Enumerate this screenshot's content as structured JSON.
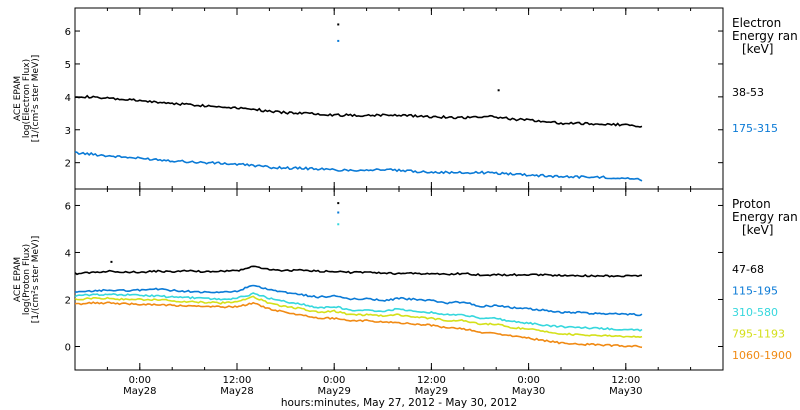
{
  "figure": {
    "xaxis_title": "hours:minutes, May 27, 2012 - May 30, 2012",
    "x_ticks": [
      {
        "hour": 8,
        "time": "0:00",
        "date": "May28"
      },
      {
        "hour": 20,
        "time": "12:00",
        "date": "May28"
      },
      {
        "hour": 32,
        "time": "0:00",
        "date": "May29"
      },
      {
        "hour": 44,
        "time": "12:00",
        "date": "May29"
      },
      {
        "hour": 56,
        "time": "0:00",
        "date": "May30"
      },
      {
        "hour": 68,
        "time": "12:00",
        "date": "May30"
      }
    ]
  },
  "chart_data": [
    {
      "type": "line",
      "ylabel_lines": [
        "ACE EPAM",
        "log(Electron Flux)",
        "[1/(cm²s ster MeV)]"
      ],
      "legend_title": [
        "Electron",
        "Energy ran",
        "[keV]"
      ],
      "ylim": [
        1.2,
        6.7
      ],
      "yticks": [
        "2",
        "3",
        "4",
        "5",
        "6"
      ],
      "x_unit": "hours after May 27, 2012 16:00",
      "xlim": [
        0,
        80
      ],
      "series": [
        {
          "name": "38-53",
          "color": "#000000",
          "x": [
            0,
            2,
            4,
            6,
            8,
            10,
            12,
            14,
            16,
            18,
            20,
            22,
            24,
            26,
            28,
            30,
            32,
            34,
            36,
            38,
            40,
            42,
            44,
            46,
            48,
            50,
            52,
            54,
            56,
            58,
            60,
            62,
            64,
            66,
            68,
            70
          ],
          "y": [
            4.02,
            3.99,
            3.95,
            3.92,
            3.88,
            3.84,
            3.8,
            3.77,
            3.73,
            3.7,
            3.67,
            3.64,
            3.55,
            3.52,
            3.51,
            3.49,
            3.45,
            3.44,
            3.44,
            3.45,
            3.45,
            3.42,
            3.4,
            3.38,
            3.37,
            3.4,
            3.39,
            3.32,
            3.3,
            3.25,
            3.2,
            3.19,
            3.18,
            3.17,
            3.15,
            3.1
          ]
        },
        {
          "name": "175-315",
          "color": "#0a7ad6",
          "x": [
            0,
            2,
            4,
            6,
            8,
            10,
            12,
            14,
            16,
            18,
            20,
            22,
            24,
            26,
            28,
            30,
            32,
            34,
            36,
            38,
            40,
            42,
            44,
            46,
            48,
            50,
            52,
            54,
            56,
            58,
            60,
            62,
            64,
            66,
            68,
            70
          ],
          "y": [
            2.3,
            2.26,
            2.21,
            2.17,
            2.13,
            2.1,
            2.06,
            2.03,
            2.0,
            1.98,
            1.95,
            1.92,
            1.86,
            1.84,
            1.83,
            1.81,
            1.78,
            1.77,
            1.78,
            1.79,
            1.76,
            1.73,
            1.72,
            1.7,
            1.69,
            1.7,
            1.68,
            1.66,
            1.63,
            1.6,
            1.58,
            1.57,
            1.56,
            1.55,
            1.53,
            1.47
          ]
        }
      ],
      "spikes": [
        {
          "x": 32.5,
          "y": 6.2,
          "color": "#000000"
        },
        {
          "x": 32.5,
          "y": 5.7,
          "color": "#0a7ad6"
        },
        {
          "x": 52.3,
          "y": 4.2,
          "color": "#000000"
        }
      ]
    },
    {
      "type": "line",
      "ylabel_lines": [
        "ACE EPAM",
        "log(Proton Flux)",
        "[1/(cm²s ster MeV)]"
      ],
      "legend_title": [
        "Proton",
        "Energy ran",
        "[keV]"
      ],
      "ylim": [
        -1.0,
        6.7
      ],
      "yticks": [
        "0",
        "2",
        "4",
        "6"
      ],
      "x_unit": "hours after May 27, 2012 16:00",
      "xlim": [
        0,
        80
      ],
      "series": [
        {
          "name": "47-68",
          "color": "#000000",
          "x": [
            0,
            2,
            4,
            6,
            8,
            10,
            12,
            14,
            16,
            18,
            20,
            22,
            24,
            26,
            28,
            30,
            32,
            34,
            36,
            38,
            40,
            42,
            44,
            46,
            48,
            50,
            52,
            54,
            56,
            58,
            60,
            62,
            64,
            66,
            68,
            70
          ],
          "y": [
            3.1,
            3.15,
            3.2,
            3.18,
            3.15,
            3.2,
            3.18,
            3.22,
            3.18,
            3.2,
            3.22,
            3.4,
            3.28,
            3.22,
            3.25,
            3.2,
            3.2,
            3.15,
            3.15,
            3.12,
            3.1,
            3.12,
            3.08,
            3.08,
            3.1,
            3.05,
            3.05,
            3.05,
            3.05,
            3.05,
            3.02,
            3.02,
            3.0,
            3.0,
            3.0,
            3.0
          ]
        },
        {
          "name": "115-195",
          "color": "#0a7ad6",
          "x": [
            0,
            2,
            4,
            6,
            8,
            10,
            12,
            14,
            16,
            18,
            20,
            22,
            24,
            26,
            28,
            30,
            32,
            34,
            36,
            38,
            40,
            42,
            44,
            46,
            48,
            50,
            52,
            54,
            56,
            58,
            60,
            62,
            64,
            66,
            68,
            70
          ],
          "y": [
            2.3,
            2.35,
            2.4,
            2.38,
            2.4,
            2.45,
            2.38,
            2.35,
            2.3,
            2.3,
            2.35,
            2.6,
            2.4,
            2.3,
            2.2,
            2.1,
            2.15,
            2.0,
            2.05,
            1.95,
            2.05,
            2.0,
            1.95,
            1.85,
            1.9,
            1.7,
            1.75,
            1.65,
            1.6,
            1.55,
            1.45,
            1.45,
            1.4,
            1.4,
            1.38,
            1.35
          ]
        },
        {
          "name": "310-580",
          "color": "#36d7dd",
          "x": [
            0,
            2,
            4,
            6,
            8,
            10,
            12,
            14,
            16,
            18,
            20,
            22,
            24,
            26,
            28,
            30,
            32,
            34,
            36,
            38,
            40,
            42,
            44,
            46,
            48,
            50,
            52,
            54,
            56,
            58,
            60,
            62,
            64,
            66,
            68,
            70
          ],
          "y": [
            2.15,
            2.2,
            2.22,
            2.2,
            2.18,
            2.15,
            2.1,
            2.08,
            2.05,
            2.0,
            2.05,
            2.25,
            2.05,
            1.9,
            1.8,
            1.65,
            1.7,
            1.55,
            1.55,
            1.5,
            1.6,
            1.5,
            1.45,
            1.35,
            1.35,
            1.2,
            1.2,
            1.05,
            1.0,
            0.9,
            0.85,
            0.8,
            0.78,
            0.75,
            0.72,
            0.7
          ]
        },
        {
          "name": "795-1193",
          "color": "#d4e01a",
          "x": [
            0,
            2,
            4,
            6,
            8,
            10,
            12,
            14,
            16,
            18,
            20,
            22,
            24,
            26,
            28,
            30,
            32,
            34,
            36,
            38,
            40,
            42,
            44,
            46,
            48,
            50,
            52,
            54,
            56,
            58,
            60,
            62,
            64,
            66,
            68,
            70
          ],
          "y": [
            2.0,
            2.05,
            2.05,
            2.0,
            2.0,
            1.98,
            1.95,
            1.9,
            1.88,
            1.85,
            1.9,
            2.1,
            1.85,
            1.7,
            1.6,
            1.45,
            1.5,
            1.35,
            1.35,
            1.3,
            1.35,
            1.25,
            1.2,
            1.1,
            1.1,
            0.95,
            0.95,
            0.8,
            0.75,
            0.65,
            0.55,
            0.5,
            0.48,
            0.45,
            0.42,
            0.4
          ]
        },
        {
          "name": "1060-1900",
          "color": "#f08a14",
          "x": [
            0,
            2,
            4,
            6,
            8,
            10,
            12,
            14,
            16,
            18,
            20,
            22,
            24,
            26,
            28,
            30,
            32,
            34,
            36,
            38,
            40,
            42,
            44,
            46,
            48,
            50,
            52,
            54,
            56,
            58,
            60,
            62,
            64,
            66,
            68,
            70
          ],
          "y": [
            1.8,
            1.85,
            1.85,
            1.82,
            1.8,
            1.78,
            1.75,
            1.72,
            1.7,
            1.68,
            1.7,
            1.85,
            1.6,
            1.45,
            1.35,
            1.2,
            1.2,
            1.1,
            1.1,
            1.05,
            1.0,
            0.95,
            0.9,
            0.8,
            0.75,
            0.6,
            0.55,
            0.45,
            0.35,
            0.25,
            0.15,
            0.1,
            0.08,
            0.05,
            0.02,
            0.0
          ]
        }
      ],
      "spikes": [
        {
          "x": 32.5,
          "y": 6.1,
          "color": "#000000"
        },
        {
          "x": 32.5,
          "y": 5.7,
          "color": "#0a7ad6"
        },
        {
          "x": 32.5,
          "y": 5.2,
          "color": "#36d7dd"
        },
        {
          "x": 4.5,
          "y": 3.6,
          "color": "#000000"
        }
      ]
    }
  ]
}
